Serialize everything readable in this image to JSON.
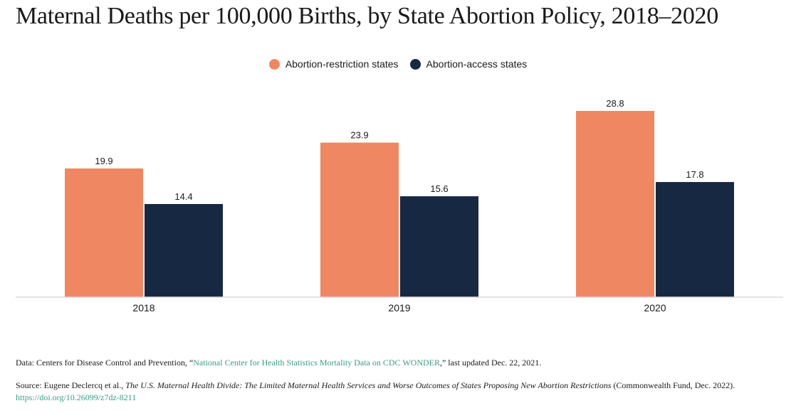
{
  "title": "Maternal Deaths per 100,000 Births, by State Abortion Policy, 2018–2020",
  "colors": {
    "restriction": "#f08763",
    "access": "#172843",
    "axis": "#d9d9d9",
    "link": "#3a9c87"
  },
  "chart_data": {
    "type": "bar",
    "categories": [
      "2018",
      "2019",
      "2020"
    ],
    "series": [
      {
        "name": "Abortion-restriction states",
        "values": [
          19.9,
          23.9,
          28.8
        ],
        "labels": [
          "19.9",
          "23.9",
          "28.8"
        ]
      },
      {
        "name": "Abortion-access states",
        "values": [
          14.4,
          15.6,
          17.8
        ],
        "labels": [
          "14.4",
          "15.6",
          "17.8"
        ]
      }
    ],
    "title": "Maternal Deaths per 100,000 Births, by State Abortion Policy, 2018–2020",
    "xlabel": "",
    "ylabel": "",
    "ylim": [
      0,
      33
    ],
    "grid": false,
    "legend": "top-center"
  },
  "notes": {
    "data_prefix": "Data: Centers for Disease Control and Prevention, “",
    "data_link": "National Center for Health Statistics Mortality Data on CDC WONDER",
    "data_suffix": ",” last updated Dec. 22, 2021.",
    "source_prefix": "Source: Eugene Declercq et al., ",
    "source_title": "The U.S. Maternal Health Divide: The Limited Maternal Health Services and Worse Outcomes of States Proposing New Abortion Restrictions",
    "source_suffix": " (Commonwealth Fund, Dec. 2022).",
    "source_doi": "https://doi.org/10.26099/z7dz-8211"
  }
}
